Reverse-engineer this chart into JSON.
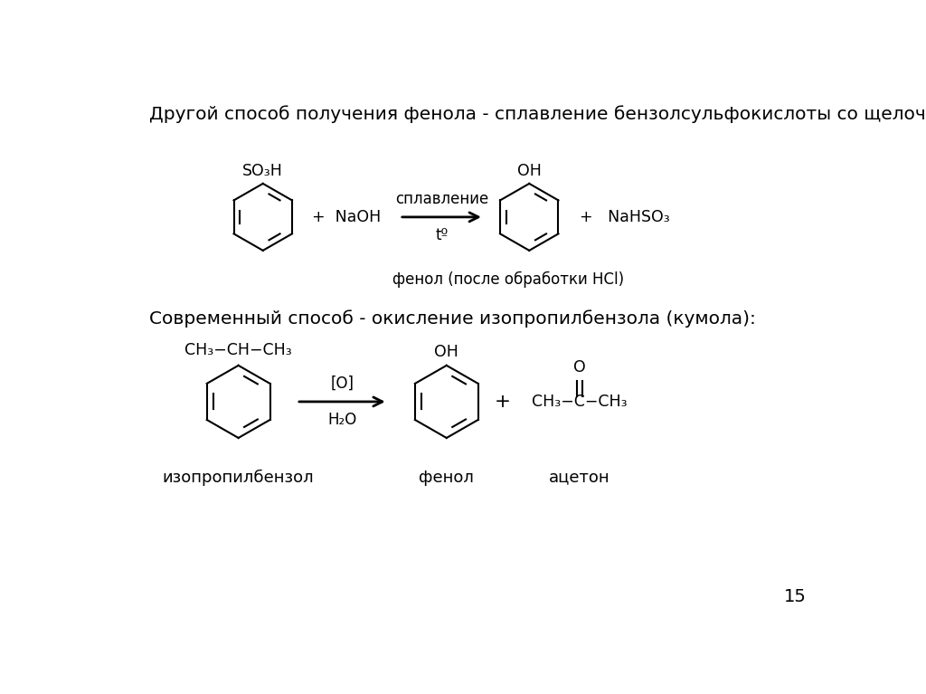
{
  "bg_color": "#ffffff",
  "title1": "Другой способ получения фенола - сплавление бензолсульфокислоты со щелочью:",
  "title2": "Современный способ - окисление изопропилбензола (кумола):",
  "page_number": "15",
  "reaction1": {
    "caption": "фенол (после обработки HCl)"
  },
  "reaction2": {
    "label1": "изопропилбензол",
    "label2": "фенол",
    "label3": "ацетон"
  },
  "font_size_title": 14.5,
  "font_size_label": 13,
  "font_size_caption": 12,
  "font_size_formula": 12.5,
  "font_size_page": 14
}
